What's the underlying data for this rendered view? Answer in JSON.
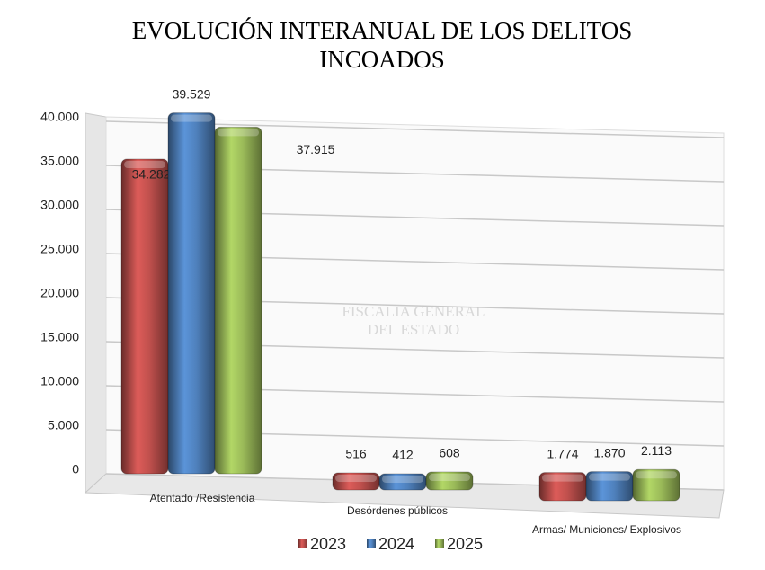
{
  "chart_data": {
    "type": "bar",
    "title": "EVOLUCIÓN INTERANUAL DE LOS DELITOS INCOADOS",
    "watermark": [
      "FISCALIA GENERAL",
      "DEL ESTADO"
    ],
    "categories": [
      "Atentado /Resistencia",
      "Desórdenes públicos",
      "Armas/ Municiones/ Explosivos"
    ],
    "series": [
      {
        "name": "2023",
        "color": "#c0504d",
        "values": [
          34282,
          516,
          1774
        ],
        "value_labels": [
          "34.282",
          "516",
          "1.774"
        ]
      },
      {
        "name": "2024",
        "color": "#4f81bd",
        "values": [
          39529,
          412,
          1870
        ],
        "value_labels": [
          "39.529",
          "412",
          "1.870"
        ]
      },
      {
        "name": "2025",
        "color": "#9bbb59",
        "values": [
          37915,
          608,
          2113
        ],
        "value_labels": [
          "37.915",
          "608",
          "2.113"
        ]
      }
    ],
    "ylim": [
      0,
      40000
    ],
    "yticks": [
      0,
      {
        "value": 5000,
        "label": "5.000"
      },
      {
        "value": 10000,
        "label": "10.000"
      },
      {
        "value": 15000,
        "label": "15.000"
      },
      {
        "value": 20000,
        "label": "20.000"
      },
      {
        "value": 25000,
        "label": "25.000"
      },
      {
        "value": 30000,
        "label": "30.000"
      },
      {
        "value": 35000,
        "label": "35.000"
      },
      {
        "value": 40000,
        "label": "40.000"
      }
    ],
    "grid": true,
    "legend": "bottom"
  }
}
